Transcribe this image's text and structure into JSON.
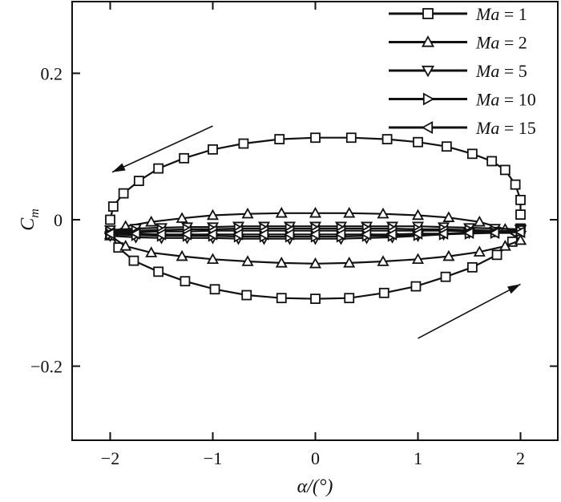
{
  "chart_data": {
    "type": "line",
    "xlabel": "α/(°)",
    "ylabel": "C",
    "ylabel_sub": "m",
    "xlim": [
      -2.4,
      2.4
    ],
    "ylim": [
      -0.3,
      0.3
    ],
    "xticks": [
      -2,
      -1,
      0,
      1,
      2
    ],
    "xtick_labels": [
      "−2",
      "−1",
      "0",
      "1",
      "2"
    ],
    "yticks": [
      0.2,
      0,
      -0.2
    ],
    "ytick_labels": [
      "0.2",
      "0",
      "−0.2"
    ],
    "grid": false,
    "legend_position": "top-right",
    "description_of_curves": "Hysteresis loops of pitching moment vs angle of attack; upper branch traversed with decreasing alpha, lower branch with increasing alpha",
    "series": [
      {
        "name": "Ma = 1",
        "legend_prefix": "Ma",
        "legend_value": "= 1",
        "marker": "square",
        "upper": {
          "x": [
            2.0,
            2.0,
            1.95,
            1.85,
            1.72,
            1.53,
            1.28,
            1.0,
            0.7,
            0.35,
            0.0,
            -0.35,
            -0.7,
            -1.0,
            -1.28,
            -1.53,
            -1.72,
            -1.87,
            -1.97,
            -2.0
          ],
          "y": [
            0.007,
            0.027,
            0.048,
            0.068,
            0.08,
            0.09,
            0.1,
            0.106,
            0.11,
            0.112,
            0.112,
            0.11,
            0.104,
            0.096,
            0.084,
            0.07,
            0.053,
            0.036,
            0.018,
            0.0
          ]
        },
        "lower": {
          "x": [
            -2.0,
            -1.92,
            -1.77,
            -1.53,
            -1.27,
            -0.98,
            -0.67,
            -0.33,
            0.0,
            0.33,
            0.67,
            0.98,
            1.27,
            1.53,
            1.77,
            1.92,
            2.0
          ],
          "y": [
            -0.018,
            -0.038,
            -0.056,
            -0.071,
            -0.084,
            -0.095,
            -0.103,
            -0.107,
            -0.108,
            -0.107,
            -0.1,
            -0.091,
            -0.078,
            -0.065,
            -0.048,
            -0.03,
            -0.012
          ]
        }
      },
      {
        "name": "Ma = 2",
        "legend_prefix": "Ma",
        "legend_value": "= 2",
        "marker": "triangle-up",
        "upper": {
          "x": [
            2.0,
            1.85,
            1.6,
            1.3,
            1.0,
            0.66,
            0.33,
            0.0,
            -0.33,
            -0.66,
            -1.0,
            -1.3,
            -1.6,
            -1.85,
            -2.0
          ],
          "y": [
            -0.028,
            -0.013,
            -0.003,
            0.003,
            0.006,
            0.008,
            0.009,
            0.009,
            0.009,
            0.008,
            0.006,
            0.002,
            -0.003,
            -0.009,
            -0.02
          ]
        },
        "lower": {
          "x": [
            -2.0,
            -1.85,
            -1.6,
            -1.3,
            -1.0,
            -0.66,
            -0.33,
            0.0,
            0.33,
            0.66,
            1.0,
            1.3,
            1.6,
            1.85,
            2.0
          ],
          "y": [
            -0.022,
            -0.036,
            -0.045,
            -0.05,
            -0.054,
            -0.057,
            -0.059,
            -0.06,
            -0.059,
            -0.057,
            -0.054,
            -0.05,
            -0.044,
            -0.036,
            -0.028
          ]
        }
      },
      {
        "name": "Ma = 5",
        "legend_prefix": "Ma",
        "legend_value": "= 5",
        "marker": "triangle-down",
        "upper": {
          "x": [
            2.0,
            1.75,
            1.5,
            1.25,
            1.0,
            0.75,
            0.5,
            0.25,
            0.0,
            -0.25,
            -0.5,
            -0.75,
            -1.0,
            -1.25,
            -1.5,
            -1.75,
            -2.0
          ],
          "y": [
            -0.013,
            -0.012,
            -0.011,
            -0.01,
            -0.009,
            -0.009,
            -0.009,
            -0.009,
            -0.009,
            -0.009,
            -0.009,
            -0.009,
            -0.01,
            -0.01,
            -0.011,
            -0.012,
            -0.014
          ]
        },
        "lower": {
          "x": [
            -2.0,
            -1.75,
            -1.5,
            -1.25,
            -1.0,
            -0.75,
            -0.5,
            -0.25,
            0.0,
            0.25,
            0.5,
            0.75,
            1.0,
            1.25,
            1.5,
            1.75,
            2.0
          ],
          "y": [
            -0.022,
            -0.024,
            -0.025,
            -0.025,
            -0.025,
            -0.026,
            -0.026,
            -0.026,
            -0.026,
            -0.026,
            -0.025,
            -0.024,
            -0.022,
            -0.02,
            -0.018,
            -0.016,
            -0.014
          ]
        }
      },
      {
        "name": "Ma = 10",
        "legend_prefix": "Ma",
        "legend_value": "= 10",
        "marker": "triangle-right",
        "upper": {
          "x": [
            2.0,
            1.75,
            1.5,
            1.25,
            1.0,
            0.75,
            0.5,
            0.25,
            0.0,
            -0.25,
            -0.5,
            -0.75,
            -1.0,
            -1.25,
            -1.5,
            -1.75,
            -2.0
          ],
          "y": [
            -0.016,
            -0.015,
            -0.014,
            -0.013,
            -0.013,
            -0.012,
            -0.012,
            -0.012,
            -0.012,
            -0.012,
            -0.012,
            -0.012,
            -0.013,
            -0.013,
            -0.014,
            -0.015,
            -0.016
          ]
        },
        "lower": {
          "x": [
            -2.0,
            -1.75,
            -1.5,
            -1.25,
            -1.0,
            -0.75,
            -0.5,
            -0.25,
            0.0,
            0.25,
            0.5,
            0.75,
            1.0,
            1.25,
            1.5,
            1.75,
            2.0
          ],
          "y": [
            -0.02,
            -0.021,
            -0.022,
            -0.022,
            -0.022,
            -0.023,
            -0.023,
            -0.023,
            -0.023,
            -0.023,
            -0.022,
            -0.022,
            -0.021,
            -0.02,
            -0.019,
            -0.018,
            -0.016
          ]
        }
      },
      {
        "name": "Ma = 15",
        "legend_prefix": "Ma",
        "legend_value": "= 15",
        "marker": "triangle-left",
        "upper": {
          "x": [
            2.0,
            1.75,
            1.5,
            1.25,
            1.0,
            0.75,
            0.5,
            0.25,
            0.0,
            -0.25,
            -0.5,
            -0.75,
            -1.0,
            -1.25,
            -1.5,
            -1.75,
            -2.0
          ],
          "y": [
            -0.017,
            -0.016,
            -0.016,
            -0.015,
            -0.015,
            -0.015,
            -0.015,
            -0.015,
            -0.015,
            -0.015,
            -0.015,
            -0.015,
            -0.015,
            -0.016,
            -0.016,
            -0.017,
            -0.018
          ]
        },
        "lower": {
          "x": [
            -2.0,
            -1.75,
            -1.5,
            -1.25,
            -1.0,
            -0.75,
            -0.5,
            -0.25,
            0.0,
            0.25,
            0.5,
            0.75,
            1.0,
            1.25,
            1.5,
            1.75,
            2.0
          ],
          "y": [
            -0.019,
            -0.019,
            -0.02,
            -0.02,
            -0.02,
            -0.02,
            -0.02,
            -0.02,
            -0.02,
            -0.02,
            -0.02,
            -0.02,
            -0.019,
            -0.019,
            -0.018,
            -0.018,
            -0.017
          ]
        }
      }
    ],
    "arrows": [
      {
        "name": "upper-left-arrow",
        "from": [
          -1.0,
          0.128
        ],
        "to": [
          -1.98,
          0.065
        ]
      },
      {
        "name": "lower-right-arrow",
        "from": [
          1.0,
          -0.162
        ],
        "to": [
          2.0,
          -0.088
        ]
      }
    ],
    "colors": {
      "line": "#111111",
      "marker_fill": "#ffffff",
      "background": "#ffffff"
    }
  }
}
